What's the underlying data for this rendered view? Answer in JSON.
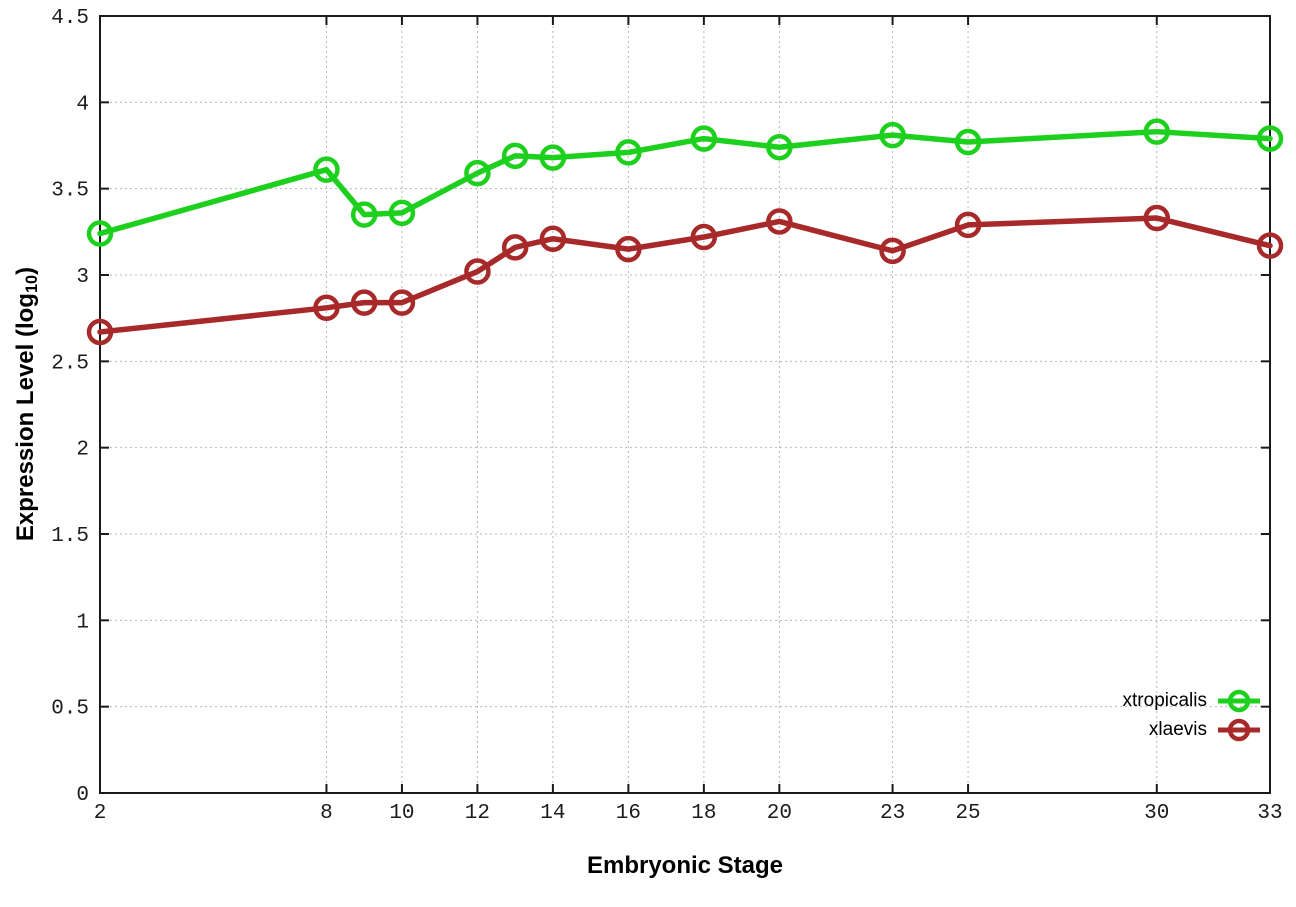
{
  "chart_data": {
    "type": "line",
    "title": "",
    "xlabel": "Embryonic Stage",
    "ylabel": "Expression Level (log10)",
    "ylabel_parts": {
      "main": "Expression Level (log",
      "sub": "10",
      "suffix": ")"
    },
    "xlim": [
      2,
      33
    ],
    "ylim": [
      0,
      4.5
    ],
    "xticks": [
      2,
      8,
      10,
      12,
      14,
      16,
      18,
      20,
      23,
      25,
      30,
      33
    ],
    "yticks": [
      0,
      0.5,
      1,
      1.5,
      2,
      2.5,
      3,
      3.5,
      4,
      4.5
    ],
    "grid": true,
    "grid_style": "dotted",
    "legend_position": "inside-bottom-right",
    "marker": "open-circle",
    "x": [
      2,
      8,
      9,
      10,
      12,
      13,
      14,
      16,
      18,
      20,
      23,
      25,
      30,
      33
    ],
    "series": [
      {
        "name": "xtropicalis",
        "color": "#1ed01e",
        "values": [
          3.24,
          3.61,
          3.35,
          3.36,
          3.59,
          3.69,
          3.68,
          3.71,
          3.79,
          3.74,
          3.81,
          3.77,
          3.83,
          3.79
        ]
      },
      {
        "name": "xlaevis",
        "color": "#a82929",
        "values": [
          2.67,
          2.81,
          2.84,
          2.84,
          3.02,
          3.16,
          3.21,
          3.15,
          3.22,
          3.31,
          3.14,
          3.29,
          3.33,
          3.17
        ]
      }
    ]
  },
  "colors": {
    "background": "#ffffff",
    "border": "#1a1a1a",
    "grid": "#b8b8b8",
    "tick_text": "#1c1c1c"
  }
}
